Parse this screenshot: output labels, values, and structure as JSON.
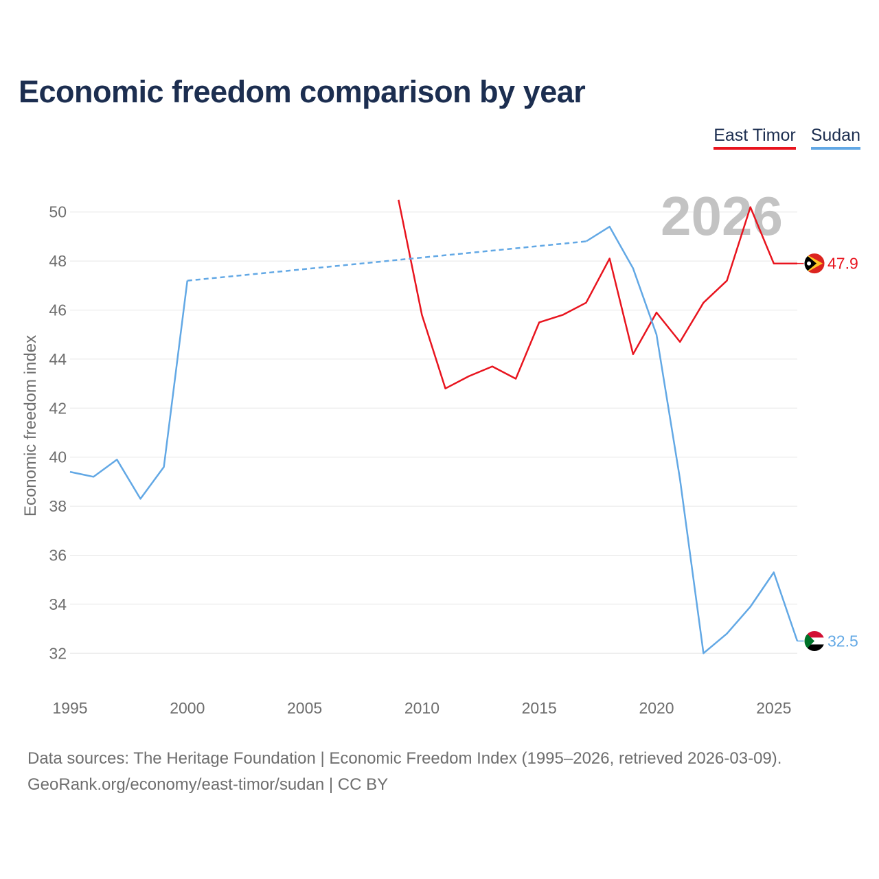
{
  "colors": {
    "east_timor": "#e8141e",
    "sudan": "#62a8e5",
    "title": "#1c2e50",
    "grid": "#e6e6e6",
    "axis_text": "#6e6e6e",
    "year_watermark": "#c3c3c3"
  },
  "chart_data": {
    "type": "line",
    "title": "Economic freedom comparison by year",
    "xlabel": "",
    "ylabel": "Economic freedom index",
    "xlim": [
      1995,
      2026
    ],
    "ylim": [
      31,
      51
    ],
    "x_ticks": [
      1995,
      2000,
      2005,
      2010,
      2015,
      2020,
      2025
    ],
    "y_ticks": [
      32,
      34,
      36,
      38,
      40,
      42,
      44,
      46,
      48,
      50
    ],
    "watermark_year": "2026",
    "legend": [
      "East Timor",
      "Sudan"
    ],
    "series": [
      {
        "key": "east_timor",
        "name": "East Timor",
        "end_label": "47.9",
        "points": [
          [
            2009,
            50.5
          ],
          [
            2010,
            45.8
          ],
          [
            2011,
            42.8
          ],
          [
            2012,
            43.3
          ],
          [
            2013,
            43.7
          ],
          [
            2014,
            43.2
          ],
          [
            2015,
            45.5
          ],
          [
            2016,
            45.8
          ],
          [
            2017,
            46.3
          ],
          [
            2018,
            48.1
          ],
          [
            2019,
            44.2
          ],
          [
            2020,
            45.9
          ],
          [
            2021,
            44.7
          ],
          [
            2022,
            46.3
          ],
          [
            2023,
            47.2
          ],
          [
            2024,
            50.2
          ],
          [
            2025,
            47.9
          ],
          [
            2026,
            47.9
          ]
        ],
        "gaps": []
      },
      {
        "key": "sudan",
        "name": "Sudan",
        "end_label": "32.5",
        "points": [
          [
            1995,
            39.4
          ],
          [
            1996,
            39.2
          ],
          [
            1997,
            39.9
          ],
          [
            1998,
            38.3
          ],
          [
            1999,
            39.6
          ],
          [
            2000,
            47.2
          ],
          [
            2017,
            48.8
          ],
          [
            2018,
            49.4
          ],
          [
            2019,
            47.7
          ],
          [
            2020,
            45.0
          ],
          [
            2021,
            39.1
          ],
          [
            2022,
            32.0
          ],
          [
            2023,
            32.8
          ],
          [
            2024,
            33.9
          ],
          [
            2025,
            35.3
          ],
          [
            2026,
            32.5
          ]
        ],
        "gaps": [
          [
            2000,
            2017
          ]
        ]
      }
    ]
  },
  "footer": {
    "line1": "Data sources: The Heritage Foundation | Economic Freedom Index (1995–2026, retrieved 2026-03-09).",
    "line2": "GeoRank.org/economy/east-timor/sudan | CC BY"
  }
}
